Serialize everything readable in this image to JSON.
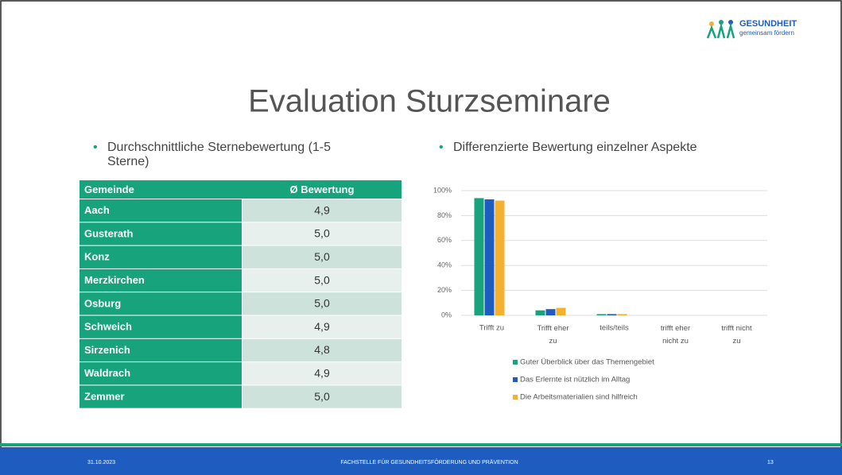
{
  "logo": {
    "line1": "GESUNDHEIT",
    "line2": "gemeinsam fördern"
  },
  "title": "Evaluation Sturzseminare",
  "left_bullet": "Durchschnittliche Sternebewertung (1-5 Sterne)",
  "right_bullet": "Differenzierte Bewertung einzelner Aspekte",
  "table": {
    "header": [
      "Gemeinde",
      "Ø Bewertung"
    ],
    "rows": [
      [
        "Aach",
        "4,9"
      ],
      [
        "Gusterath",
        "5,0"
      ],
      [
        "Konz",
        "5,0"
      ],
      [
        "Merzkirchen",
        "5,0"
      ],
      [
        "Osburg",
        "5,0"
      ],
      [
        "Schweich",
        "4,9"
      ],
      [
        "Sirzenich",
        "4,8"
      ],
      [
        "Waldrach",
        "4,9"
      ],
      [
        "Zemmer",
        "5,0"
      ]
    ]
  },
  "chart_data": {
    "type": "bar",
    "categories": [
      "Trifft zu",
      "Trifft eher zu",
      "teils/teils",
      "trifft eher nicht zu",
      "trifft nicht zu"
    ],
    "series": [
      {
        "name": "Guter Überblick über das Themengebiet",
        "color": "#17a37c",
        "values": [
          94,
          4,
          1,
          0,
          0
        ]
      },
      {
        "name": "Das Erlernte ist nützlich im Alltag",
        "color": "#1f5cc0",
        "values": [
          93,
          5,
          1,
          0,
          0
        ]
      },
      {
        "name": "Die Arbeitsmaterialien sind hilfreich",
        "color": "#f4b12f",
        "values": [
          92,
          6,
          1,
          0,
          0
        ]
      }
    ],
    "ylim": [
      0,
      100
    ],
    "yticks": [
      {
        "value": 0,
        "label": "0%"
      },
      {
        "value": 20,
        "label": "20%"
      },
      {
        "value": 40,
        "label": "40%"
      },
      {
        "value": 60,
        "label": "60%"
      },
      {
        "value": 80,
        "label": "80%"
      },
      {
        "value": 100,
        "label": "100%"
      }
    ],
    "grid": true,
    "legend": "bottom"
  },
  "footer": {
    "date": "31.10.2023",
    "center": "FACHSTELLE FÜR GESUNDHEITSFÖRDERUNG UND PRÄVENTION",
    "page": "13"
  }
}
